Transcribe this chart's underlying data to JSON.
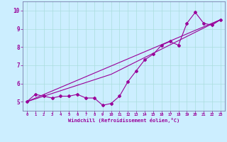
{
  "xlabel": "Windchill (Refroidissement éolien,°C)",
  "bg_color": "#cceeff",
  "line_color": "#990099",
  "grid_color": "#aadddd",
  "xlim": [
    -0.5,
    23.5
  ],
  "ylim": [
    4.5,
    10.5
  ],
  "yticks": [
    5,
    6,
    7,
    8,
    9,
    10
  ],
  "xticks": [
    0,
    1,
    2,
    3,
    4,
    5,
    6,
    7,
    8,
    9,
    10,
    11,
    12,
    13,
    14,
    15,
    16,
    17,
    18,
    19,
    20,
    21,
    22,
    23
  ],
  "line1_x": [
    0,
    1,
    2,
    3,
    4,
    5,
    6,
    7,
    8,
    9,
    10,
    11,
    12,
    13,
    14,
    15,
    16,
    17,
    18,
    19,
    20,
    21,
    22,
    23
  ],
  "line1_y": [
    5.0,
    5.4,
    5.3,
    5.2,
    5.3,
    5.3,
    5.4,
    5.2,
    5.2,
    4.8,
    4.9,
    5.3,
    6.1,
    6.7,
    7.3,
    7.6,
    8.1,
    8.3,
    8.1,
    9.3,
    9.9,
    9.3,
    9.2,
    9.5
  ],
  "line2_x": [
    0,
    23
  ],
  "line2_y": [
    5.0,
    9.5
  ],
  "line3_x": [
    0,
    10,
    23
  ],
  "line3_y": [
    5.0,
    6.5,
    9.5
  ]
}
